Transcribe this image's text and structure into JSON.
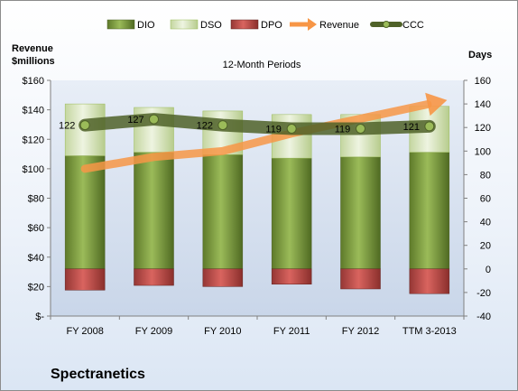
{
  "company": "Spectranetics",
  "chart_data": {
    "type": "bar",
    "title": "12-Month Periods",
    "left_axis_title": [
      "Revenue",
      "$millions"
    ],
    "right_axis_title": "Days",
    "categories": [
      "FY 2008",
      "FY 2009",
      "FY 2010",
      "FY 2011",
      "FY 2012",
      "TTM 3-2013"
    ],
    "left_axis": {
      "min": 0,
      "max": 160,
      "step": 20,
      "ticks": [
        "$-",
        "$20",
        "$40",
        "$60",
        "$80",
        "$100",
        "$120",
        "$140",
        "$160"
      ]
    },
    "right_axis": {
      "min": -40,
      "max": 160,
      "step": 20,
      "ticks": [
        "-40",
        "-20",
        "0",
        "20",
        "40",
        "60",
        "80",
        "100",
        "120",
        "140",
        "160"
      ]
    },
    "legend_position": "top",
    "series": [
      {
        "name": "DIO",
        "axis": "right",
        "kind": "stacked-bar",
        "color": "#77933c",
        "values": [
          96,
          99,
          97,
          94,
          95,
          99
        ]
      },
      {
        "name": "DSO",
        "axis": "right",
        "kind": "stacked-bar",
        "color": "#d7e4bd",
        "values": [
          44,
          38,
          37,
          37,
          36,
          39
        ]
      },
      {
        "name": "DPO",
        "axis": "right",
        "kind": "negative-bar",
        "color": "#c0504d",
        "values": [
          -18,
          -14,
          -15,
          -13,
          -17,
          -21
        ]
      },
      {
        "name": "Revenue",
        "axis": "left",
        "kind": "arrow-line",
        "color": "#f79646",
        "values": [
          100,
          108,
          112,
          124,
          134,
          144
        ]
      },
      {
        "name": "CCC",
        "axis": "right",
        "kind": "line",
        "color": "#4f6228",
        "values": [
          122,
          127,
          122,
          119,
          119,
          121
        ],
        "labels": [
          "122",
          "127",
          "122",
          "119",
          "119",
          "121"
        ]
      }
    ]
  }
}
